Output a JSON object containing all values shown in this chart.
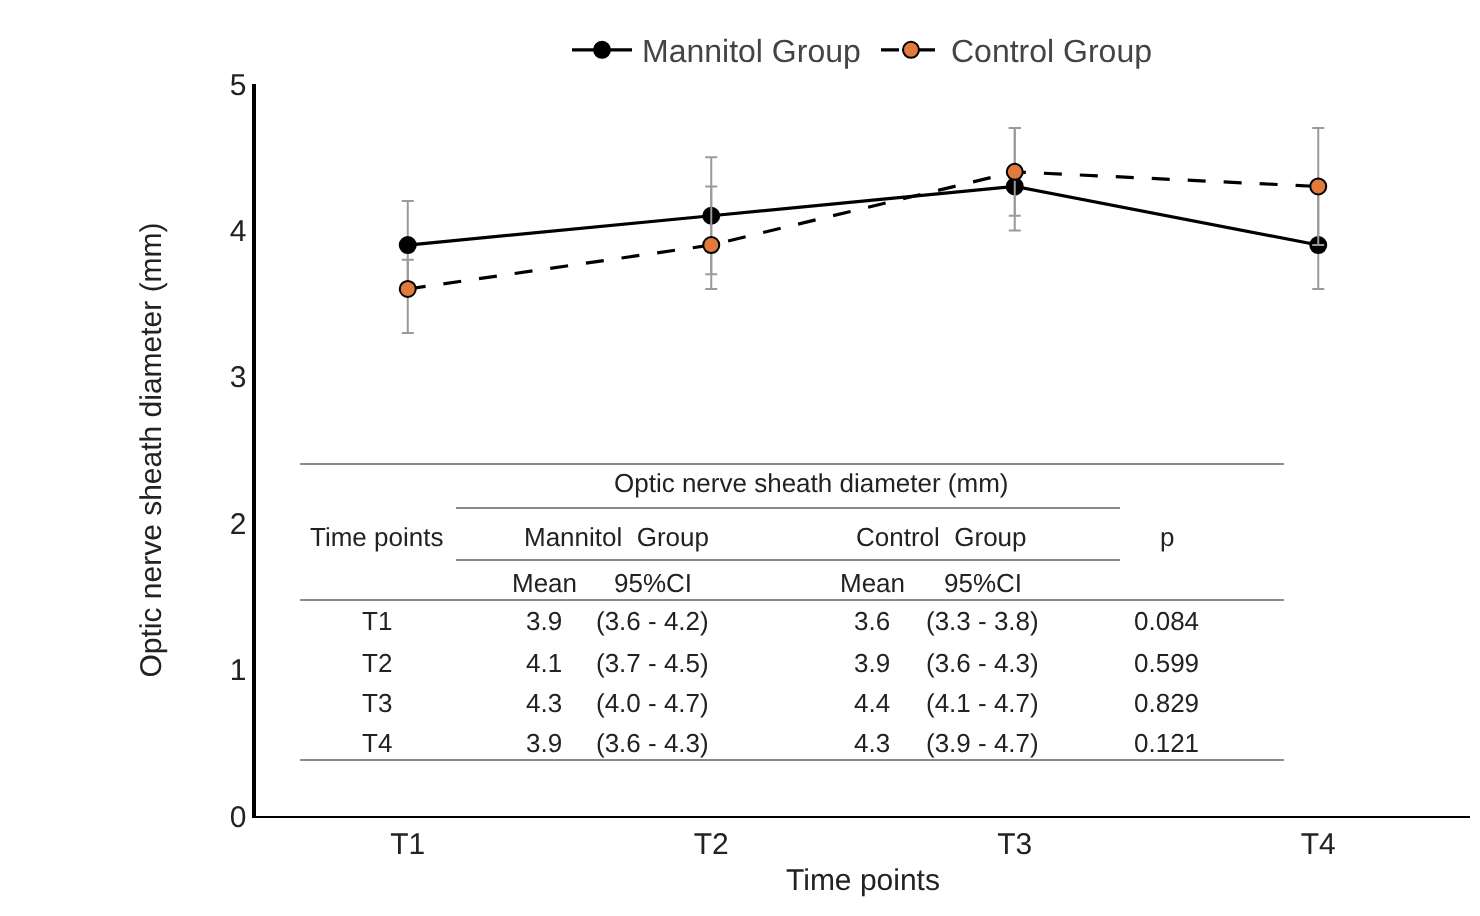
{
  "chart_data": {
    "type": "line",
    "xlabel": "Time points",
    "ylabel": "Optic nerve sheath diameter (mm)",
    "categories": [
      "T1",
      "T2",
      "T3",
      "T4"
    ],
    "series": [
      {
        "name": "Mannitol Group",
        "color": "#000000",
        "line_style": "solid",
        "values": [
          3.9,
          4.1,
          4.3,
          3.9
        ],
        "errors": [
          [
            3.6,
            4.2
          ],
          [
            3.7,
            4.5
          ],
          [
            4.0,
            4.7
          ],
          [
            3.6,
            4.3
          ]
        ]
      },
      {
        "name": "Control Group",
        "color": "#e07b3c",
        "line_style": "dashed",
        "values": [
          3.6,
          3.9,
          4.4,
          4.3
        ],
        "errors": [
          [
            3.3,
            3.8
          ],
          [
            3.6,
            4.3
          ],
          [
            4.1,
            4.7
          ],
          [
            3.9,
            4.7
          ]
        ]
      }
    ],
    "ylim": [
      0,
      5
    ],
    "yticks": [
      0,
      1,
      2,
      3,
      4,
      5
    ],
    "legend": "top",
    "marker": "circle",
    "annotations": [
      "Optic nerve sheath diameter (mm)",
      "Time points",
      "Mannitol  Group",
      "Control  Group",
      "Mean",
      "95%CI",
      "Mean",
      "95%CI",
      "p",
      "T1",
      "3.9",
      "(3.6 - 4.2)",
      "3.6",
      "(3.3 - 3.8)",
      "0.084",
      "T2",
      "4.1",
      "(3.7 - 4.5)",
      "3.9",
      "(3.6 - 4.3)",
      "0.599",
      "T3",
      "4.3",
      "(4.0 - 4.7)",
      "4.4",
      "(4.1 - 4.7)",
      "0.829",
      "T4",
      "3.9",
      "(3.6 - 4.3)",
      "4.3",
      "(3.9 - 4.7)",
      "0.121"
    ]
  }
}
